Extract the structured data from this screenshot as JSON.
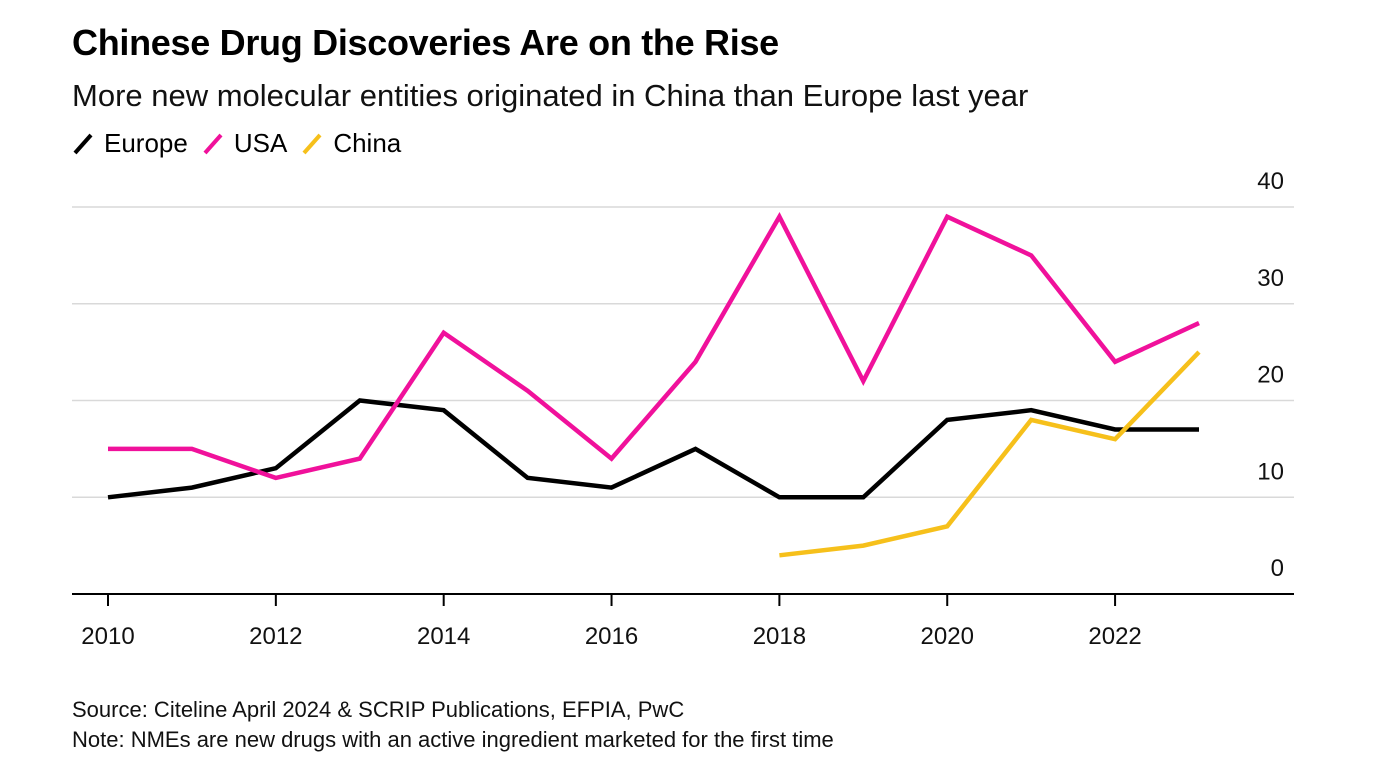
{
  "chart_data": {
    "type": "line",
    "title": "Chinese Drug Discoveries Are on the Rise",
    "subtitle": "More new molecular entities originated in China than Europe last year",
    "xlabel": "",
    "ylabel": "",
    "x": [
      2010,
      2011,
      2012,
      2013,
      2014,
      2015,
      2016,
      2017,
      2018,
      2019,
      2020,
      2021,
      2022,
      2023
    ],
    "xticks": [
      2010,
      2012,
      2014,
      2016,
      2018,
      2020,
      2022
    ],
    "xlim": [
      2010,
      2024
    ],
    "yticks": [
      0,
      10,
      20,
      30,
      40
    ],
    "ylim": [
      0,
      40
    ],
    "y_axis_position": "right",
    "grid": true,
    "legend_position": "top-left",
    "series": [
      {
        "name": "Europe",
        "color": "#000000",
        "values": [
          10,
          11,
          13,
          20,
          19,
          12,
          11,
          15,
          10,
          10,
          18,
          19,
          17,
          17
        ]
      },
      {
        "name": "USA",
        "color": "#f0119b",
        "values": [
          15,
          15,
          12,
          14,
          27,
          21,
          14,
          24,
          39,
          22,
          39,
          35,
          24,
          28
        ]
      },
      {
        "name": "China",
        "color": "#f6c01b",
        "values": [
          null,
          null,
          null,
          null,
          null,
          null,
          null,
          null,
          4,
          5,
          7,
          18,
          16,
          25
        ]
      }
    ]
  },
  "source": "Source: Citeline April 2024 & SCRIP Publications, EFPIA, PwC",
  "note": "Note: NMEs are new drugs with an active ingredient marketed for the first time"
}
